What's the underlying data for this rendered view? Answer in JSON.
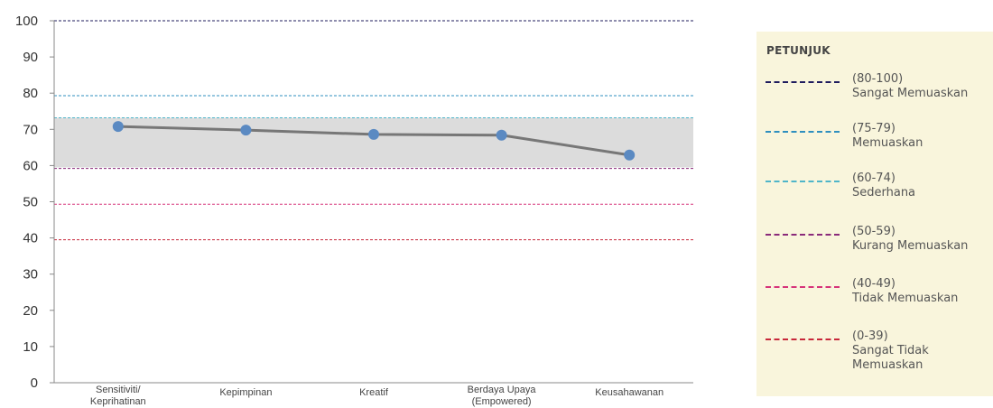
{
  "chart_data": {
    "type": "line",
    "categories": [
      "Sensitiviti/\nKeprihatinan",
      "Kepimpinan",
      "Kreatif",
      "Berdaya Upaya\n(Empowered)",
      "Keusahawanan"
    ],
    "series": [
      {
        "values": [
          70.8,
          69.8,
          68.6,
          68.4,
          62.9
        ],
        "color": "#777777",
        "marker_color": "#5b8ac2"
      }
    ],
    "ylim": [
      0,
      100
    ],
    "yticks": [
      0,
      10,
      20,
      30,
      40,
      50,
      60,
      70,
      80,
      90,
      100
    ],
    "shaded_band": {
      "from": 59.5,
      "to": 73.2,
      "color": "#dcdcdc"
    },
    "reference_lines": [
      {
        "y": 100,
        "color": "#1f1c5e"
      },
      {
        "y": 79.3,
        "color": "#2f8fbf"
      },
      {
        "y": 73.2,
        "color": "#4fb5c9"
      },
      {
        "y": 59.2,
        "color": "#8a2a7a"
      },
      {
        "y": 49.3,
        "color": "#d6337a"
      },
      {
        "y": 39.5,
        "color": "#c8283a"
      }
    ]
  },
  "legend": {
    "title": "PETUNJUK",
    "items": [
      {
        "range": "(80-100)",
        "label": "Sangat Memuaskan",
        "color": "#1f1c5e"
      },
      {
        "range": "(75-79)",
        "label": "Memuaskan",
        "color": "#2f8fbf"
      },
      {
        "range": "(60-74)",
        "label": "Sederhana",
        "color": "#4fb5c9"
      },
      {
        "range": "(50-59)",
        "label": "Kurang Memuaskan",
        "color": "#8a2a7a"
      },
      {
        "range": "(40-49)",
        "label": "Tidak Memuaskan",
        "color": "#d6337a"
      },
      {
        "range": "(0-39)",
        "label": "Sangat Tidak\nMemuaskan",
        "color": "#c8283a"
      }
    ]
  }
}
